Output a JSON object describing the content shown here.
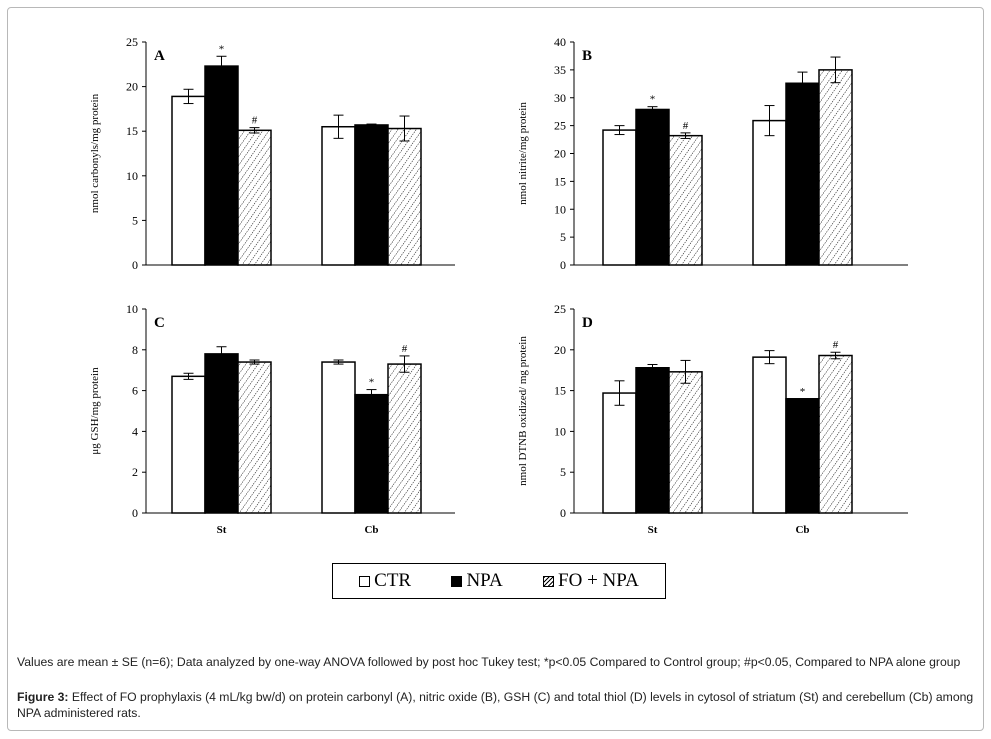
{
  "legend": {
    "items": [
      {
        "label": "CTR",
        "swatch": "open"
      },
      {
        "label": "NPA",
        "swatch": "solid"
      },
      {
        "label": "FO + NPA",
        "swatch": "hatched"
      }
    ]
  },
  "caption": {
    "notes": "Values are mean ± SE (n=6); Data analyzed by one-way ANOVA followed by post hoc Tukey test; *p<0.05 Compared to Control group; #p<0.05, Compared to NPA alone group",
    "figure_label": "Figure 3:",
    "figure_text": " Effect of FO prophylaxis (4 mL/kg bw/d) on protein carbonyl (A), nitric oxide (B), GSH (C) and total thiol (D) levels in cytosol of striatum (St) and cerebellum (Cb) among NPA administered rats."
  },
  "colors": {
    "ctr": "#ffffff",
    "npa": "#000000",
    "fo_npa": "hatched",
    "axis": "#000000"
  },
  "chart_data": [
    {
      "type": "bar",
      "panel": "A",
      "ylabel": "nmol carbonyls/mg  protein",
      "categories": [
        "",
        ""
      ],
      "ylim": [
        0,
        25
      ],
      "yticks": [
        0,
        5,
        10,
        15,
        20,
        25
      ],
      "series": [
        {
          "name": "CTR",
          "values": [
            18.9,
            15.5
          ],
          "errors": [
            0.8,
            1.3
          ]
        },
        {
          "name": "NPA",
          "values": [
            22.3,
            15.7
          ],
          "errors": [
            1.1,
            0.1
          ]
        },
        {
          "name": "FO + NPA",
          "values": [
            15.1,
            15.3
          ],
          "errors": [
            0.3,
            1.4
          ]
        }
      ],
      "annotations": [
        {
          "series": 1,
          "category": 0,
          "text": "*"
        },
        {
          "series": 2,
          "category": 0,
          "text": "#"
        }
      ]
    },
    {
      "type": "bar",
      "panel": "B",
      "ylabel": "nmol nitrite/mg protein",
      "categories": [
        "",
        ""
      ],
      "ylim": [
        0,
        40
      ],
      "yticks": [
        0,
        5,
        10,
        15,
        20,
        25,
        30,
        35,
        40
      ],
      "series": [
        {
          "name": "CTR",
          "values": [
            24.2,
            25.9
          ],
          "errors": [
            0.8,
            2.7
          ]
        },
        {
          "name": "NPA",
          "values": [
            27.9,
            32.6
          ],
          "errors": [
            0.5,
            2.0
          ]
        },
        {
          "name": "FO + NPA",
          "values": [
            23.2,
            35.0
          ],
          "errors": [
            0.5,
            2.3
          ]
        }
      ],
      "annotations": [
        {
          "series": 1,
          "category": 0,
          "text": "*"
        },
        {
          "series": 2,
          "category": 0,
          "text": "#"
        }
      ]
    },
    {
      "type": "bar",
      "panel": "C",
      "ylabel": "μg GSH/mg protein",
      "categories": [
        "St",
        "Cb"
      ],
      "ylim": [
        0,
        10
      ],
      "yticks": [
        0,
        2,
        4,
        6,
        8,
        10
      ],
      "series": [
        {
          "name": "CTR",
          "values": [
            6.7,
            7.4
          ],
          "errors": [
            0.15,
            0.1
          ]
        },
        {
          "name": "NPA",
          "values": [
            7.8,
            5.8
          ],
          "errors": [
            0.35,
            0.25
          ]
        },
        {
          "name": "FO + NPA",
          "values": [
            7.4,
            7.3
          ],
          "errors": [
            0.1,
            0.4
          ]
        }
      ],
      "annotations": [
        {
          "series": 1,
          "category": 1,
          "text": "*"
        },
        {
          "series": 2,
          "category": 1,
          "text": "#"
        }
      ]
    },
    {
      "type": "bar",
      "panel": "D",
      "ylabel": "nmol DTNB oxidized/ mg protein",
      "categories": [
        "St",
        "Cb"
      ],
      "ylim": [
        0,
        25
      ],
      "yticks": [
        0,
        5,
        10,
        15,
        20,
        25
      ],
      "series": [
        {
          "name": "CTR",
          "values": [
            14.7,
            19.1
          ],
          "errors": [
            1.5,
            0.8
          ]
        },
        {
          "name": "NPA",
          "values": [
            17.8,
            14.0
          ],
          "errors": [
            0.4,
            0.0
          ]
        },
        {
          "name": "FO + NPA",
          "values": [
            17.3,
            19.3
          ],
          "errors": [
            1.4,
            0.4
          ]
        }
      ],
      "annotations": [
        {
          "series": 1,
          "category": 1,
          "text": "*"
        },
        {
          "series": 2,
          "category": 1,
          "text": "#"
        }
      ]
    }
  ]
}
